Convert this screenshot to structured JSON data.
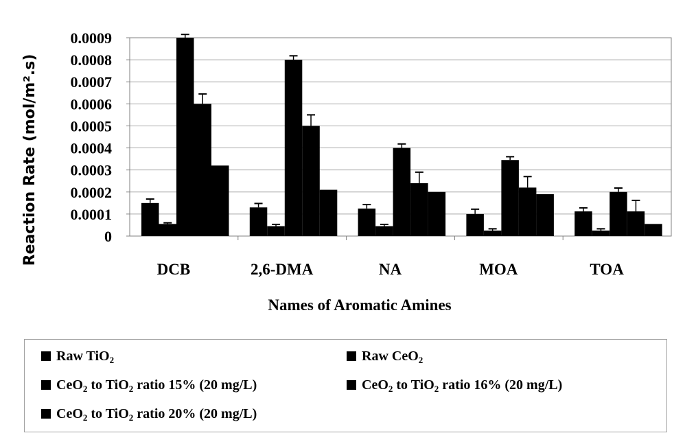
{
  "chart_data": {
    "type": "bar",
    "ylabel": "Reaction Rate (mol/m².s)",
    "xlabel": "Names of Aromatic Amines",
    "categories": [
      "DCB",
      "2,6-DMA",
      "NA",
      "MOA",
      "TOA"
    ],
    "ylim": [
      0,
      0.0009
    ],
    "yticks": [
      "0.0009",
      "0.0008",
      "0.0007",
      "0.0006",
      "0.0005",
      "0.0004",
      "0.0003",
      "0.0002",
      "0.0001",
      "0"
    ],
    "ytick_values": [
      0.0009,
      0.0008,
      0.0007,
      0.0006,
      0.0005,
      0.0004,
      0.0003,
      0.0002,
      0.0001,
      0
    ],
    "grid": true,
    "legend_position": "bottom",
    "bar_color": "#000000",
    "series": [
      {
        "name": "Raw TiO2",
        "values": [
          0.00015,
          0.00013,
          0.000125,
          0.0001,
          0.000112
        ],
        "errors": [
          1.8e-05,
          1.8e-05,
          1.8e-05,
          2.2e-05,
          1.6e-05
        ]
      },
      {
        "name": "Raw CeO2",
        "values": [
          5.5e-05,
          4.5e-05,
          4.5e-05,
          2.5e-05,
          2.5e-05
        ],
        "errors": [
          5e-06,
          8e-06,
          8e-06,
          8e-06,
          8e-06
        ]
      },
      {
        "name": "CeO2 to TiO2 ratio 15% (20 mg/L)",
        "values": [
          0.0009,
          0.0008,
          0.0004,
          0.000345,
          0.0002
        ],
        "errors": [
          1.5e-05,
          1.8e-05,
          1.8e-05,
          1.5e-05,
          1.8e-05
        ]
      },
      {
        "name": "CeO2 to TiO2 ratio 16% (20 mg/L)",
        "values": [
          0.0006,
          0.0005,
          0.00024,
          0.00022,
          0.000112
        ],
        "errors": [
          4.5e-05,
          5e-05,
          5e-05,
          5e-05,
          5e-05
        ]
      },
      {
        "name": "CeO2 to TiO2 ratio 20% (20 mg/L)",
        "values": [
          0.00032,
          0.00021,
          0.0002,
          0.00019,
          5.5e-05
        ],
        "errors": [
          0,
          0,
          0,
          0,
          0
        ]
      }
    ]
  },
  "legend": {
    "items": [
      {
        "pre": "Raw TiO",
        "sub": "2",
        "post": ""
      },
      {
        "pre": "Raw CeO",
        "sub": "2",
        "post": ""
      },
      {
        "pre": "CeO",
        "sub": "2",
        "mid": " to TiO",
        "sub2": "2",
        "post": " ratio 15% (20 mg/L)"
      },
      {
        "pre": "CeO",
        "sub": "2",
        "mid": " to TiO",
        "sub2": "2",
        "post": " ratio 16% (20 mg/L)"
      },
      {
        "pre": "CeO",
        "sub": "2",
        "mid": " to TiO",
        "sub2": "2",
        "post": " ratio 20% (20 mg/L)"
      }
    ]
  }
}
